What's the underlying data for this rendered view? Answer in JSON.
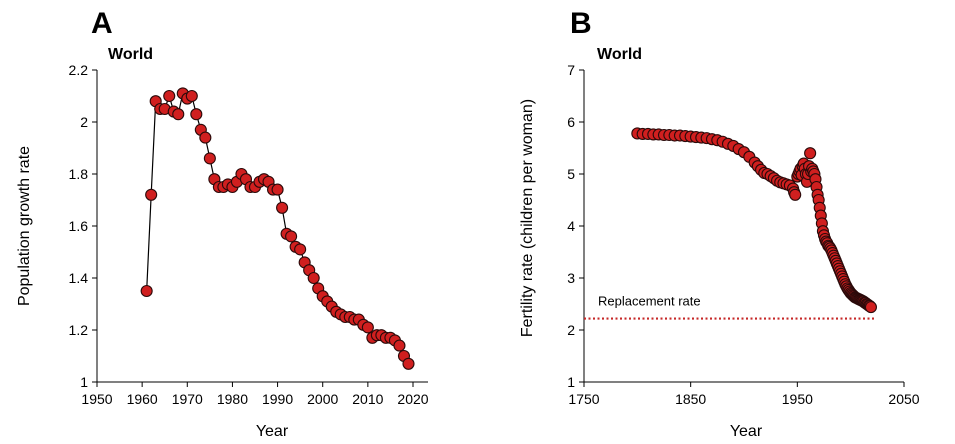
{
  "chart_data": [
    {
      "type": "line",
      "panel_label": "A",
      "title": "World",
      "xlabel": "Year",
      "ylabel": "Population growth rate",
      "xlim": [
        1950,
        2020
      ],
      "ylim": [
        1,
        2.2
      ],
      "xticks": [
        1950,
        1960,
        1970,
        1980,
        1990,
        2000,
        2010,
        2020
      ],
      "yticks": [
        1,
        1.2,
        1.4,
        1.6,
        1.8,
        2,
        2.2
      ],
      "grid": false,
      "marker_color": "#d01f1f",
      "line_color": "#000000",
      "x": [
        1961,
        1962,
        1963,
        1964,
        1965,
        1966,
        1967,
        1968,
        1969,
        1970,
        1971,
        1972,
        1973,
        1974,
        1975,
        1976,
        1977,
        1978,
        1979,
        1980,
        1981,
        1982,
        1983,
        1984,
        1985,
        1986,
        1987,
        1988,
        1989,
        1990,
        1991,
        1992,
        1993,
        1994,
        1995,
        1996,
        1997,
        1998,
        1999,
        2000,
        2001,
        2002,
        2003,
        2004,
        2005,
        2006,
        2007,
        2008,
        2009,
        2010,
        2011,
        2012,
        2013,
        2014,
        2015,
        2016,
        2017,
        2018,
        2019
      ],
      "y": [
        1.35,
        1.72,
        2.08,
        2.05,
        2.05,
        2.1,
        2.04,
        2.03,
        2.11,
        2.09,
        2.1,
        2.03,
        1.97,
        1.94,
        1.86,
        1.78,
        1.75,
        1.75,
        1.76,
        1.75,
        1.77,
        1.8,
        1.78,
        1.75,
        1.75,
        1.77,
        1.78,
        1.77,
        1.74,
        1.74,
        1.67,
        1.57,
        1.56,
        1.52,
        1.51,
        1.46,
        1.43,
        1.4,
        1.36,
        1.33,
        1.31,
        1.29,
        1.27,
        1.26,
        1.25,
        1.25,
        1.24,
        1.24,
        1.22,
        1.21,
        1.17,
        1.18,
        1.18,
        1.17,
        1.17,
        1.16,
        1.14,
        1.1,
        1.07
      ]
    },
    {
      "type": "scatter",
      "panel_label": "B",
      "title": "World",
      "xlabel": "Year",
      "ylabel": "Fertility rate (children per woman)",
      "xlim": [
        1750,
        2050
      ],
      "ylim": [
        1,
        7
      ],
      "xticks": [
        1750,
        1850,
        1950,
        2050
      ],
      "yticks": [
        1,
        2,
        3,
        4,
        5,
        6,
        7
      ],
      "grid": false,
      "marker_color": "#d01f1f",
      "series": [
        {
          "x": [
            1800,
            1805,
            1810,
            1815,
            1820,
            1825,
            1830,
            1835,
            1840,
            1845,
            1850,
            1855,
            1860,
            1865,
            1870,
            1875,
            1880,
            1885,
            1890,
            1895,
            1900,
            1905,
            1910,
            1913,
            1916,
            1919,
            1922,
            1925,
            1928,
            1931,
            1934,
            1937,
            1940,
            1943,
            1946,
            1947,
            1948,
            1950,
            1951,
            1952,
            1953,
            1954,
            1955,
            1956,
            1957,
            1958,
            1959,
            1960,
            1961,
            1962,
            1963,
            1964,
            1965,
            1966,
            1967,
            1968,
            1969,
            1970,
            1971,
            1972,
            1973,
            1974,
            1975,
            1976,
            1977,
            1978,
            1979,
            1980,
            1981,
            1982,
            1983,
            1984,
            1985,
            1986,
            1987,
            1988,
            1989,
            1990,
            1991,
            1992,
            1993,
            1994,
            1995,
            1996,
            1997,
            1998,
            1999,
            2000,
            2001,
            2002,
            2003,
            2004,
            2005,
            2006,
            2007,
            2008,
            2009,
            2010,
            2011,
            2012,
            2013,
            2014,
            2015,
            2016,
            2017,
            2018,
            2019
          ],
          "y": [
            5.78,
            5.77,
            5.77,
            5.76,
            5.76,
            5.75,
            5.75,
            5.74,
            5.74,
            5.73,
            5.72,
            5.71,
            5.7,
            5.69,
            5.67,
            5.65,
            5.62,
            5.58,
            5.54,
            5.48,
            5.42,
            5.33,
            5.22,
            5.15,
            5.08,
            5.02,
            5.0,
            4.96,
            4.92,
            4.87,
            4.84,
            4.82,
            4.8,
            4.78,
            4.72,
            4.65,
            4.6,
            4.95,
            5.0,
            5.05,
            5.1,
            4.98,
            5.15,
            5.2,
            5.1,
            5.0,
            4.85,
            5.0,
            5.15,
            5.4,
            5.05,
            5.1,
            5.05,
            5.0,
            4.9,
            4.75,
            4.6,
            4.5,
            4.35,
            4.2,
            4.05,
            3.9,
            3.82,
            3.75,
            3.7,
            3.67,
            3.62,
            3.6,
            3.57,
            3.53,
            3.48,
            3.43,
            3.38,
            3.33,
            3.28,
            3.23,
            3.18,
            3.13,
            3.08,
            3.03,
            2.98,
            2.93,
            2.88,
            2.84,
            2.8,
            2.77,
            2.74,
            2.71,
            2.69,
            2.67,
            2.65,
            2.63,
            2.62,
            2.61,
            2.6,
            2.59,
            2.58,
            2.57,
            2.56,
            2.55,
            2.53,
            2.52,
            2.5,
            2.49,
            2.47,
            2.46,
            2.44
          ]
        }
      ],
      "reference_line": {
        "label": "Replacement rate",
        "y": 2.22,
        "x_start": 1750,
        "x_end": 2023,
        "color": "#c62828",
        "style": "dotted"
      }
    }
  ]
}
